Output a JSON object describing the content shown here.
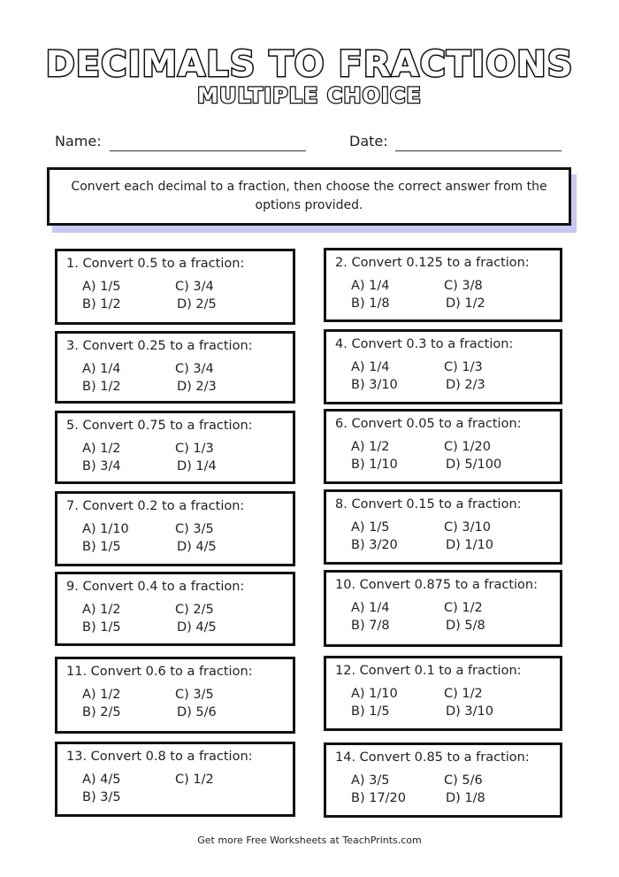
{
  "title": "DECIMALS TO FRACTIONS",
  "subtitle": "MULTIPLE CHOICE",
  "name_label": "Name:",
  "date_label": "Date:",
  "instructions": "Convert each decimal to a fraction, then choose the correct answer from the options provided.",
  "questions": [
    {
      "text": "1. Convert 0.5 to a fraction:",
      "a": "A) 1/5",
      "b": "B) 1/2",
      "c": "C) 3/4",
      "d": "D) 2/5"
    },
    {
      "text": "2. Convert 0.125 to a fraction:",
      "a": "A) 1/4",
      "b": "B) 1/8",
      "c": "C) 3/8",
      "d": "D) 1/2"
    },
    {
      "text": "3. Convert 0.25 to a fraction:",
      "a": "A) 1/4",
      "b": "B) 1/2",
      "c": "C) 3/4",
      "d": "D) 2/3"
    },
    {
      "text": "4. Convert 0.3 to a fraction:",
      "a": "A) 1/4",
      "b": "B) 3/10",
      "c": "C) 1/3",
      "d": "D) 2/3"
    },
    {
      "text": "5. Convert 0.75 to a fraction:",
      "a": "A) 1/2",
      "b": "B) 3/4",
      "c": "C) 1/3",
      "d": "D) 1/4"
    },
    {
      "text": "6. Convert 0.05 to a fraction:",
      "a": "A) 1/2",
      "b": "B) 1/10",
      "c": "C) 1/20",
      "d": "D) 5/100"
    },
    {
      "text": "7. Convert 0.2 to a fraction:",
      "a": "A) 1/10",
      "b": "B) 1/5",
      "c": "C) 3/5",
      "d": "D) 4/5"
    },
    {
      "text": "8. Convert 0.15 to a fraction:",
      "a": "A) 1/5",
      "b": "B) 3/20",
      "c": "C) 3/10",
      "d": "D) 1/10"
    },
    {
      "text": "9. Convert 0.4 to a fraction:",
      "a": "A) 1/2",
      "b": "B) 1/5",
      "c": "C) 2/5",
      "d": "D) 4/5"
    },
    {
      "text": "10. Convert 0.875 to a fraction:",
      "a": "A) 1/4",
      "b": "B) 7/8",
      "c": "C) 1/2",
      "d": "D) 5/8"
    },
    {
      "text": "11. Convert 0.6 to a fraction:",
      "a": "A) 1/2",
      "b": "B) 2/5",
      "c": "C) 3/5",
      "d": "D) 5/6"
    },
    {
      "text": "12. Convert 0.1 to a fraction:",
      "a": "A) 1/10",
      "b": "B) 1/5",
      "c": "C) 1/2",
      "d": "D) 3/10"
    },
    {
      "text": "13. Convert 0.8 to a fraction:",
      "a": "A) 4/5",
      "b": "B) 3/5",
      "c": "C) 1/2",
      "d": ""
    },
    {
      "text": "14. Convert 0.85 to a fraction:",
      "a": "A) 3/5",
      "b": "B) 17/20",
      "c": "C) 5/6",
      "d": "D) 1/8"
    }
  ],
  "footer": "Get more Free Worksheets at TeachPrints.com",
  "colors": {
    "shadow": "#c9c8f2",
    "border": "#111111"
  }
}
